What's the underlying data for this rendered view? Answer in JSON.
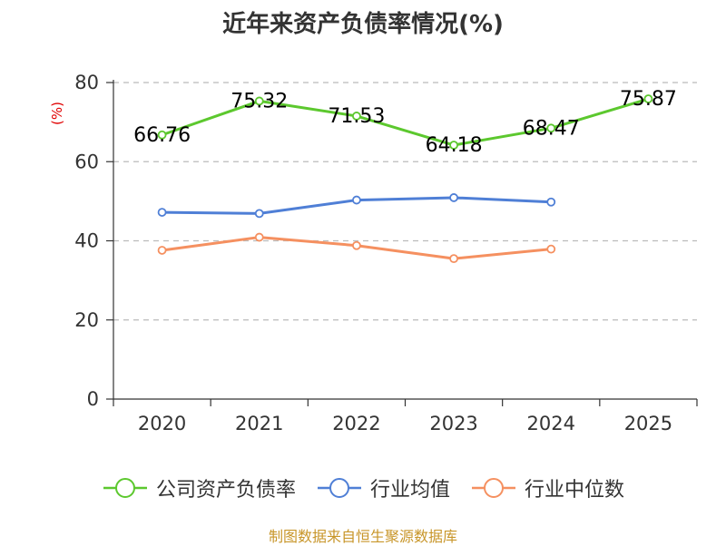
{
  "page": {
    "title": "近年来资产负债率情况(%)",
    "source": "制图数据来自恒生聚源数据库"
  },
  "chart_data": {
    "type": "line",
    "title": "近年来资产负债率情况(%)",
    "ylabel": "(%)",
    "xlabel": "",
    "categories": [
      "2020",
      "2021",
      "2022",
      "2023",
      "2024",
      "2025"
    ],
    "ylim": [
      0,
      80
    ],
    "yticks": [
      0,
      20,
      40,
      60,
      80
    ],
    "grid": true,
    "legend_position": "bottom",
    "series": [
      {
        "name": "公司资产负债率",
        "color": "#5cc82e",
        "values": [
          66.76,
          75.32,
          71.53,
          64.18,
          68.47,
          75.87
        ],
        "labels": [
          "66.76",
          "75.32",
          "71.53",
          "64.18",
          "68.47",
          "75.87"
        ]
      },
      {
        "name": "行业均值",
        "color": "#4f7fd6",
        "values": [
          47.2,
          46.9,
          50.3,
          50.9,
          49.8,
          null
        ]
      },
      {
        "name": "行业中位数",
        "color": "#f59060",
        "values": [
          37.6,
          40.9,
          38.8,
          35.5,
          37.9,
          null
        ]
      }
    ]
  }
}
